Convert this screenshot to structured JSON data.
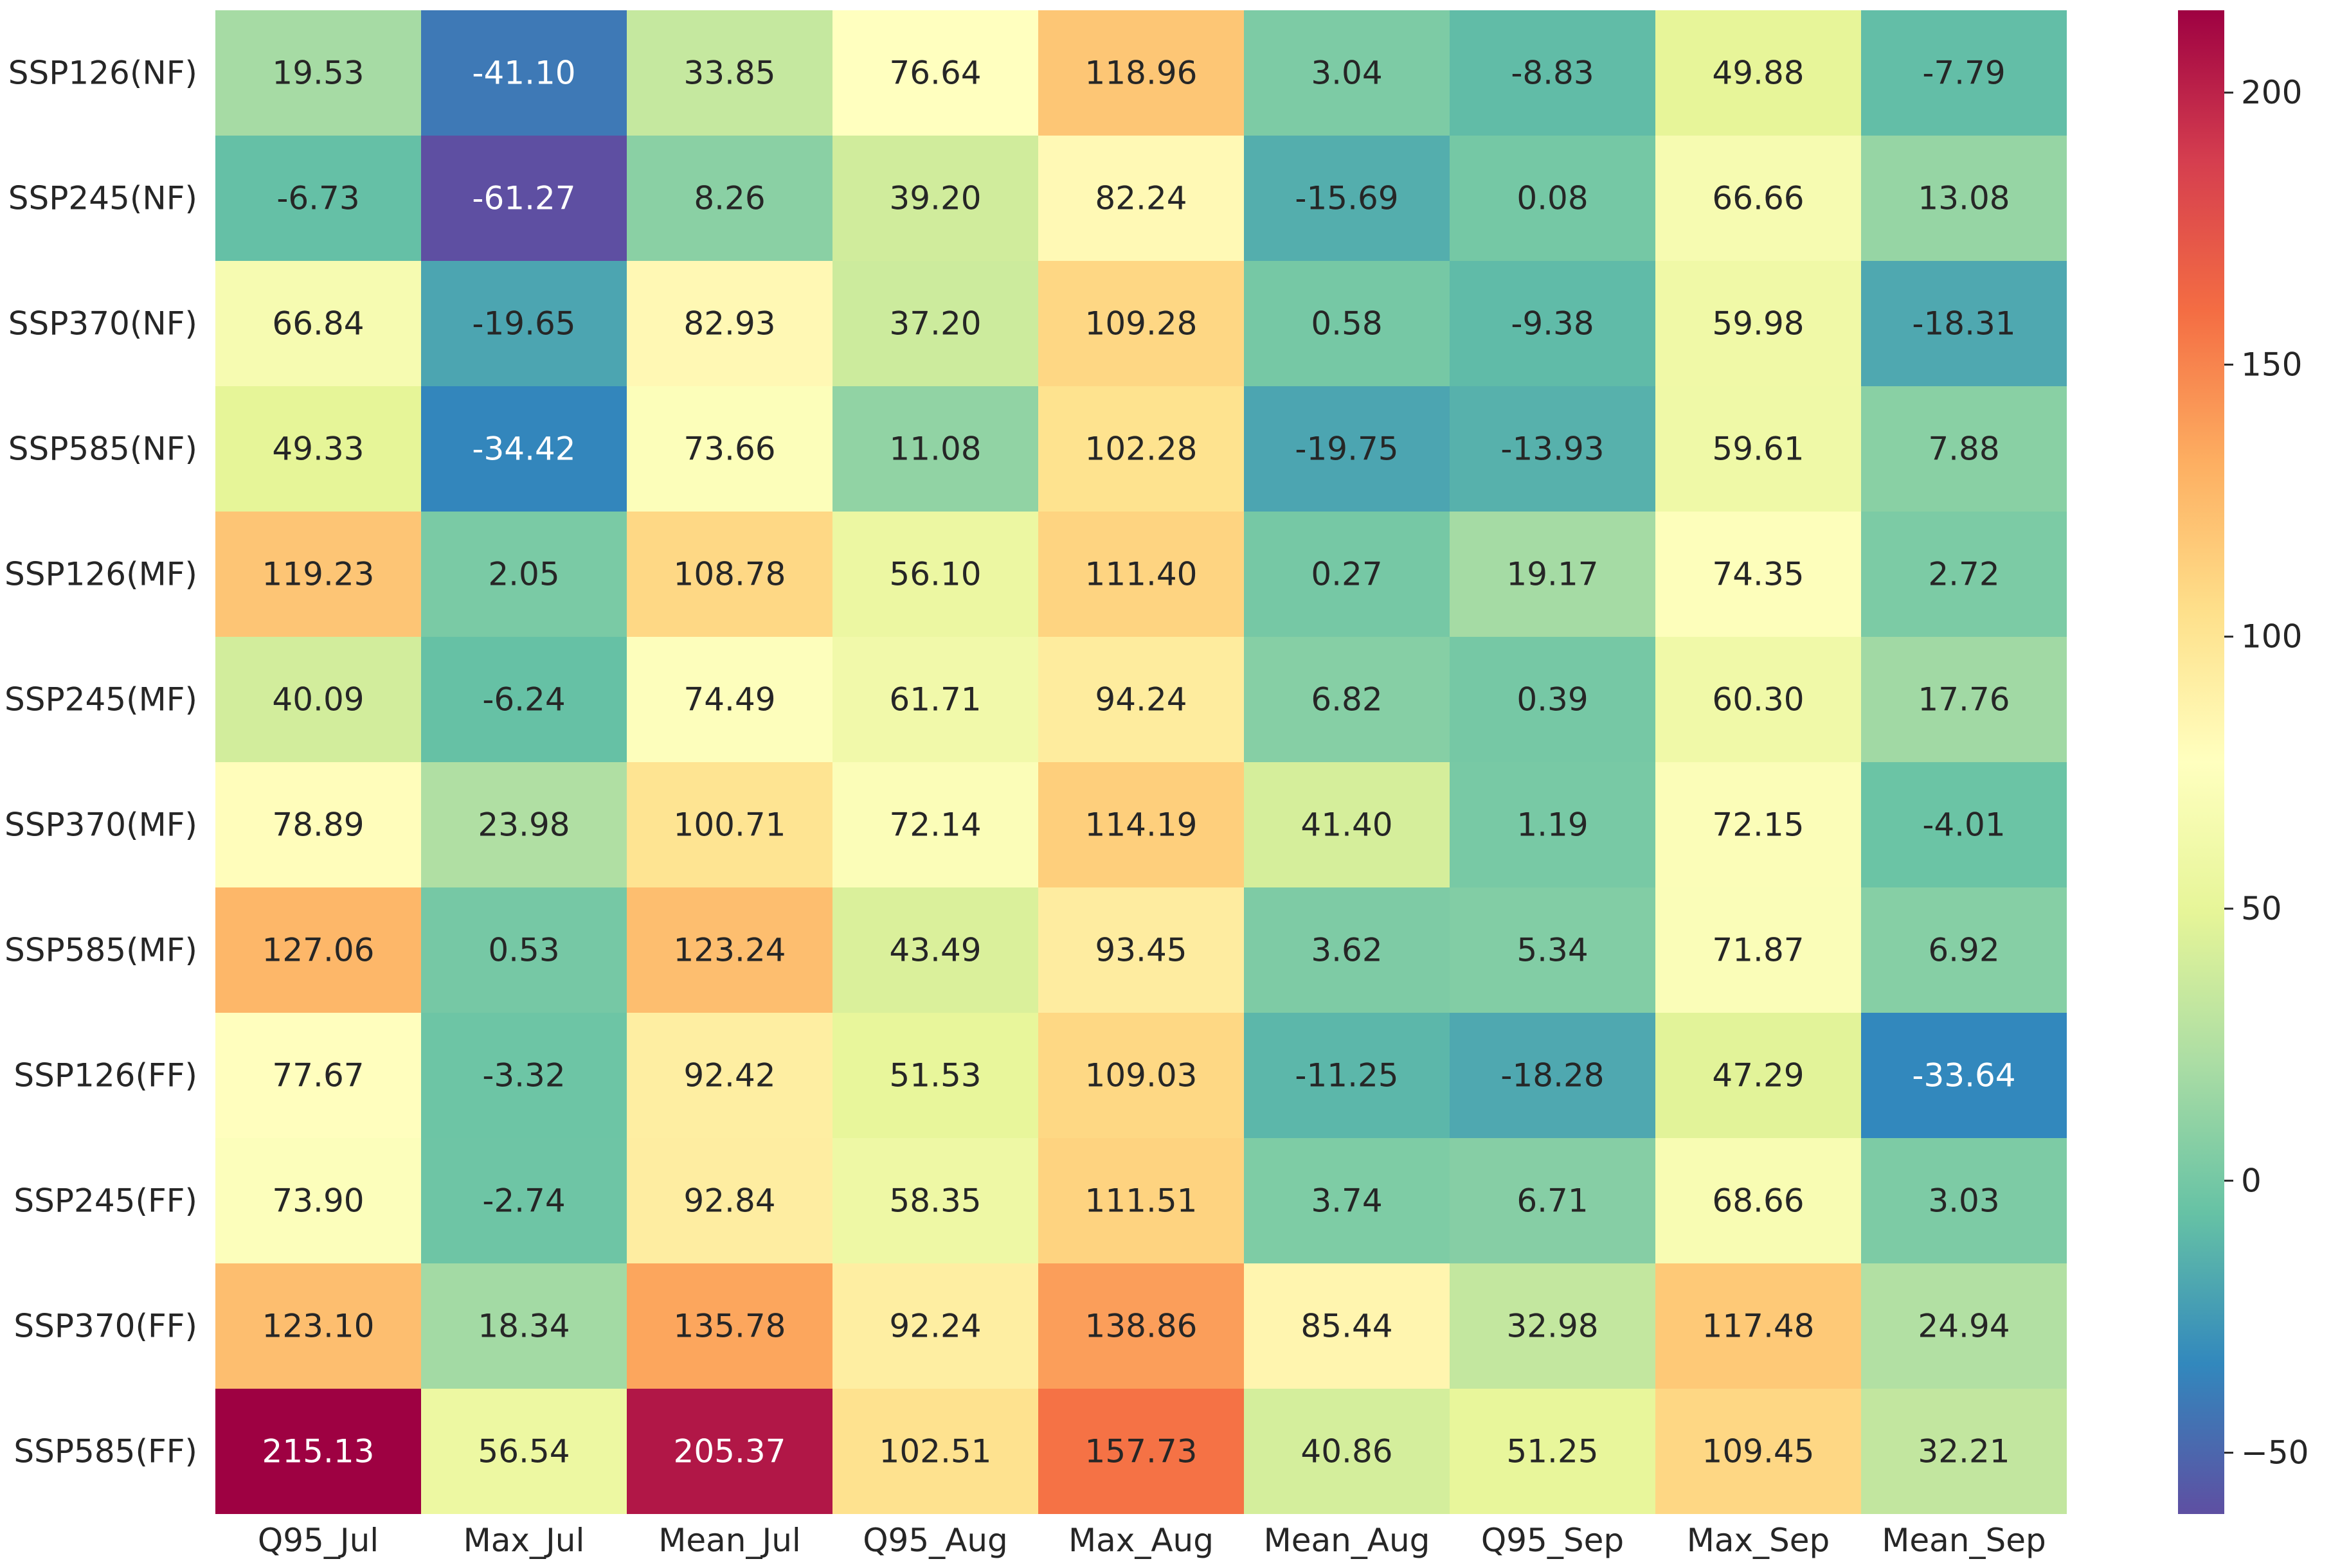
{
  "chart_data": {
    "type": "heatmap",
    "title": "",
    "xlabel": "",
    "ylabel": "",
    "columns": [
      "Q95_Jul",
      "Max_Jul",
      "Mean_Jul",
      "Q95_Aug",
      "Max_Aug",
      "Mean_Aug",
      "Q95_Sep",
      "Max_Sep",
      "Mean_Sep"
    ],
    "rows": [
      "SSP126(NF)",
      "SSP245(NF)",
      "SSP370(NF)",
      "SSP585(NF)",
      "SSP126(MF)",
      "SSP245(MF)",
      "SSP370(MF)",
      "SSP585(MF)",
      "SSP126(FF)",
      "SSP245(FF)",
      "SSP370(FF)",
      "SSP585(FF)"
    ],
    "values": [
      [
        19.53,
        -41.1,
        33.85,
        76.64,
        118.96,
        3.04,
        -8.83,
        49.88,
        -7.79
      ],
      [
        -6.73,
        -61.27,
        8.26,
        39.2,
        82.24,
        -15.69,
        0.08,
        66.66,
        13.08
      ],
      [
        66.84,
        -19.65,
        82.93,
        37.2,
        109.28,
        0.58,
        -9.38,
        59.98,
        -18.31
      ],
      [
        49.33,
        -34.42,
        73.66,
        11.08,
        102.28,
        -19.75,
        -13.93,
        59.61,
        7.88
      ],
      [
        119.23,
        2.05,
        108.78,
        56.1,
        111.4,
        0.27,
        19.17,
        74.35,
        2.72
      ],
      [
        40.09,
        -6.24,
        74.49,
        61.71,
        94.24,
        6.82,
        0.39,
        60.3,
        17.76
      ],
      [
        78.89,
        23.98,
        100.71,
        72.14,
        114.19,
        41.4,
        1.19,
        72.15,
        -4.01
      ],
      [
        127.06,
        0.53,
        123.24,
        43.49,
        93.45,
        3.62,
        5.34,
        71.87,
        6.92
      ],
      [
        77.67,
        -3.32,
        92.42,
        51.53,
        109.03,
        -11.25,
        -18.28,
        47.29,
        -33.64
      ],
      [
        73.9,
        -2.74,
        92.84,
        58.35,
        111.51,
        3.74,
        6.71,
        68.66,
        3.03
      ],
      [
        123.1,
        18.34,
        135.78,
        92.24,
        138.86,
        85.44,
        32.98,
        117.48,
        24.94
      ],
      [
        215.13,
        56.54,
        205.37,
        102.51,
        157.73,
        40.86,
        51.25,
        109.45,
        32.21
      ]
    ],
    "value_range": [
      -61.27,
      215.13
    ],
    "colormap": "Spectral_r",
    "colorbar": {
      "ticks": [
        -50,
        0,
        50,
        100,
        150,
        200
      ],
      "tick_labels": [
        "−50",
        "0",
        "50",
        "100",
        "150",
        "200"
      ],
      "placement": "right"
    },
    "annotations": "two-decimal cell values",
    "grid": false
  }
}
